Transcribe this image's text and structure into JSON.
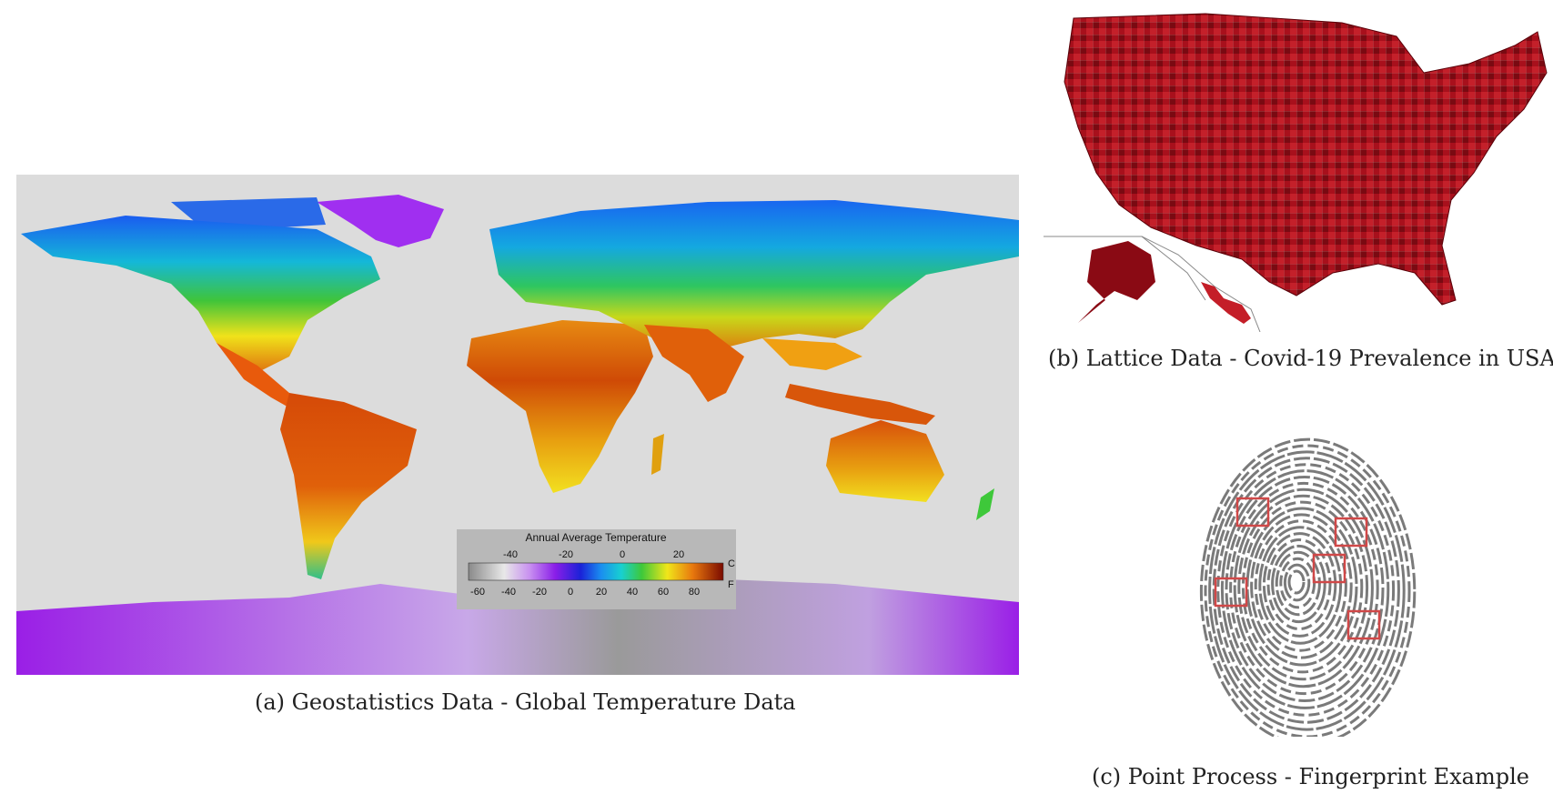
{
  "figures": [
    {
      "id": "a",
      "caption": "(a) Geostatistics Data - Global Temperature Data",
      "legend": {
        "title": "Annual Average Temperature",
        "celsius_unit": "C",
        "fahrenheit_unit": "F",
        "celsius_ticks": [
          "-40",
          "-20",
          "0",
          "20"
        ],
        "fahrenheit_ticks": [
          "-60",
          "-40",
          "-20",
          "0",
          "20",
          "40",
          "60",
          "80"
        ]
      }
    },
    {
      "id": "b",
      "caption": "(b) Lattice Data - Covid-19 Prevalence in USA"
    },
    {
      "id": "c",
      "caption": "(c) Point Process - Fingerprint Example",
      "highlight_box_count": 5
    }
  ]
}
